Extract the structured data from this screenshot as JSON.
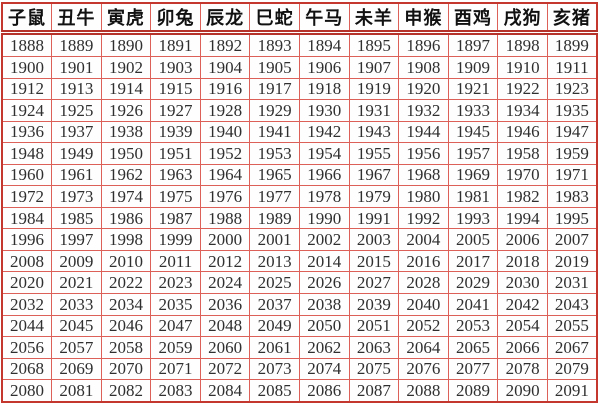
{
  "chart_data": {
    "type": "table",
    "columns": [
      "子鼠",
      "丑牛",
      "寅虎",
      "卯兔",
      "辰龙",
      "巳蛇",
      "午马",
      "未羊",
      "申猴",
      "酉鸡",
      "戌狗",
      "亥猪"
    ],
    "rows": [
      [
        1888,
        1889,
        1890,
        1891,
        1892,
        1893,
        1894,
        1895,
        1896,
        1897,
        1898,
        1899
      ],
      [
        1900,
        1901,
        1902,
        1903,
        1904,
        1905,
        1906,
        1907,
        1908,
        1909,
        1910,
        1911
      ],
      [
        1912,
        1913,
        1914,
        1915,
        1916,
        1917,
        1918,
        1919,
        1920,
        1921,
        1922,
        1923
      ],
      [
        1924,
        1925,
        1926,
        1927,
        1928,
        1929,
        1930,
        1931,
        1932,
        1933,
        1934,
        1935
      ],
      [
        1936,
        1937,
        1938,
        1939,
        1940,
        1941,
        1942,
        1943,
        1944,
        1945,
        1946,
        1947
      ],
      [
        1948,
        1949,
        1950,
        1951,
        1952,
        1953,
        1954,
        1955,
        1956,
        1957,
        1958,
        1959
      ],
      [
        1960,
        1961,
        1962,
        1963,
        1964,
        1965,
        1966,
        1967,
        1968,
        1969,
        1970,
        1971
      ],
      [
        1972,
        1973,
        1974,
        1975,
        1976,
        1977,
        1978,
        1979,
        1980,
        1981,
        1982,
        1983
      ],
      [
        1984,
        1985,
        1986,
        1987,
        1988,
        1989,
        1990,
        1991,
        1992,
        1993,
        1994,
        1995
      ],
      [
        1996,
        1997,
        1998,
        1999,
        2000,
        2001,
        2002,
        2003,
        2004,
        2005,
        2006,
        2007
      ],
      [
        2008,
        2009,
        2010,
        2011,
        2012,
        2013,
        2014,
        2015,
        2016,
        2017,
        2018,
        2019
      ],
      [
        2020,
        2021,
        2022,
        2023,
        2024,
        2025,
        2026,
        2027,
        2028,
        2029,
        2030,
        2031
      ],
      [
        2032,
        2033,
        2034,
        2035,
        2036,
        2037,
        2038,
        2039,
        2040,
        2041,
        2042,
        2043
      ],
      [
        2044,
        2045,
        2046,
        2047,
        2048,
        2049,
        2050,
        2051,
        2052,
        2053,
        2054,
        2055
      ],
      [
        2056,
        2057,
        2058,
        2059,
        2060,
        2061,
        2062,
        2063,
        2064,
        2065,
        2066,
        2067
      ],
      [
        2068,
        2069,
        2070,
        2071,
        2072,
        2073,
        2074,
        2075,
        2076,
        2077,
        2078,
        2079
      ],
      [
        2080,
        2081,
        2082,
        2083,
        2084,
        2085,
        2086,
        2087,
        2088,
        2089,
        2090,
        2091
      ]
    ]
  },
  "colors": {
    "outer_border": "#c4372f",
    "inner_border": "#dc5f58",
    "header_separator": "#b5322b",
    "header_text": "#111111",
    "year_text": "#2f2f2f",
    "background": "#ffffff"
  }
}
